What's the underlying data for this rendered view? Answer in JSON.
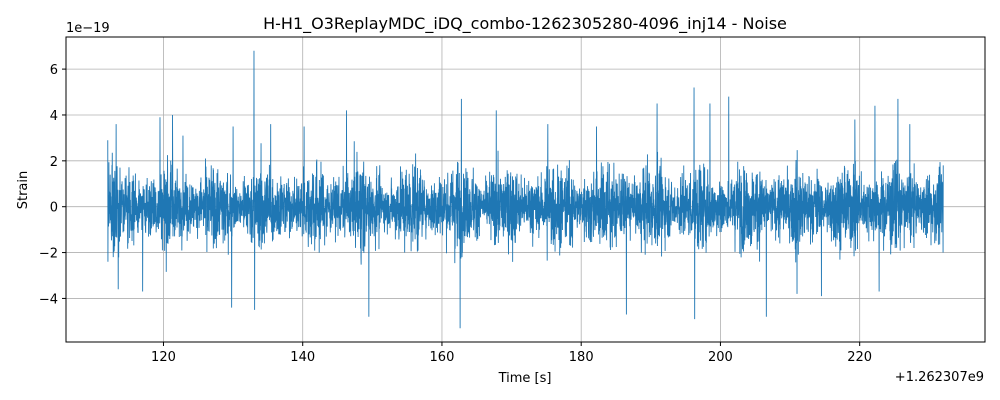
{
  "chart_data": {
    "type": "line",
    "title": "H-H1_O3ReplayMDC_iDQ_combo-1262305280-4096_inj14 - Noise",
    "xlabel": "Time [s]",
    "ylabel": "Strain",
    "x_offset_label": "+1.262307e9",
    "y_scale_label": "1e−19",
    "xlim": [
      106,
      238
    ],
    "ylim": [
      -5.9,
      7.4
    ],
    "xticks": [
      120,
      140,
      160,
      180,
      200,
      220
    ],
    "yticks": [
      -4,
      -2,
      0,
      2,
      4,
      6
    ],
    "xtick_labels": [
      "120",
      "140",
      "160",
      "180",
      "200",
      "220"
    ],
    "ytick_labels": [
      "−4",
      "−2",
      "0",
      "2",
      "4",
      "6"
    ],
    "grid": true,
    "series": [
      {
        "color": "#1f77b4",
        "x_range": [
          112,
          232
        ],
        "envelope_peaks": [
          {
            "x": 113.2,
            "y": 3.6
          },
          {
            "x": 113.5,
            "y": -3.6
          },
          {
            "x": 117.0,
            "y": -3.7
          },
          {
            "x": 119.5,
            "y": 3.9
          },
          {
            "x": 121.3,
            "y": 4.0
          },
          {
            "x": 122.8,
            "y": 3.1
          },
          {
            "x": 129.8,
            "y": -4.4
          },
          {
            "x": 130.0,
            "y": 3.5
          },
          {
            "x": 133.0,
            "y": 6.8
          },
          {
            "x": 133.1,
            "y": -4.5
          },
          {
            "x": 135.4,
            "y": 3.6
          },
          {
            "x": 140.2,
            "y": 3.5
          },
          {
            "x": 146.3,
            "y": 4.2
          },
          {
            "x": 149.5,
            "y": -4.8
          },
          {
            "x": 162.6,
            "y": -5.3
          },
          {
            "x": 162.8,
            "y": 4.7
          },
          {
            "x": 167.8,
            "y": 4.2
          },
          {
            "x": 175.2,
            "y": 3.6
          },
          {
            "x": 182.2,
            "y": 3.5
          },
          {
            "x": 186.5,
            "y": -4.7
          },
          {
            "x": 190.9,
            "y": 4.5
          },
          {
            "x": 196.2,
            "y": 5.2
          },
          {
            "x": 196.3,
            "y": -4.9
          },
          {
            "x": 198.5,
            "y": 4.5
          },
          {
            "x": 201.2,
            "y": 4.8
          },
          {
            "x": 206.6,
            "y": -4.8
          },
          {
            "x": 211.0,
            "y": -3.8
          },
          {
            "x": 214.5,
            "y": -3.9
          },
          {
            "x": 219.3,
            "y": 3.8
          },
          {
            "x": 222.2,
            "y": 4.4
          },
          {
            "x": 222.8,
            "y": -3.7
          },
          {
            "x": 225.5,
            "y": 4.7
          },
          {
            "x": 227.2,
            "y": 3.6
          }
        ]
      }
    ]
  }
}
